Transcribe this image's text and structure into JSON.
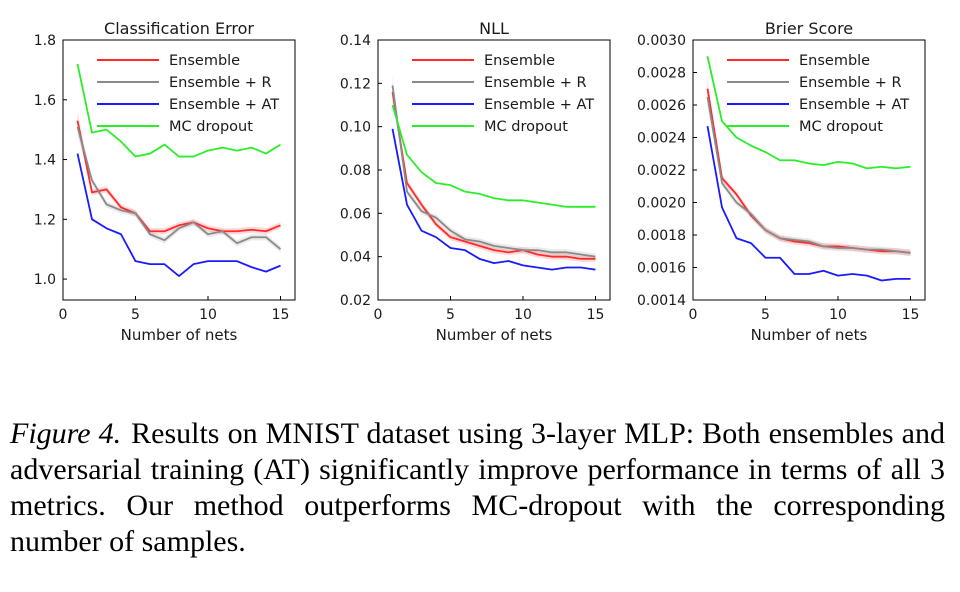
{
  "chart_data": [
    {
      "type": "line",
      "title": "Classification Error",
      "xlabel": "Number of nets",
      "ylabel": "",
      "xlim": [
        0,
        16
      ],
      "ylim": [
        0.93,
        1.8
      ],
      "xticks": [
        0,
        5,
        10,
        15
      ],
      "yticks": [
        1.0,
        1.2,
        1.4,
        1.6,
        1.8
      ],
      "ytick_labels": [
        "1.0",
        "1.2",
        "1.4",
        "1.6",
        "1.8"
      ],
      "legend": "top-right",
      "x": [
        1,
        2,
        3,
        4,
        5,
        6,
        7,
        8,
        9,
        10,
        11,
        12,
        13,
        14,
        15
      ],
      "series": [
        {
          "name": "Ensemble",
          "color": "#ff2a2a",
          "band": true,
          "values": [
            1.53,
            1.29,
            1.3,
            1.24,
            1.22,
            1.16,
            1.16,
            1.18,
            1.19,
            1.17,
            1.16,
            1.16,
            1.165,
            1.16,
            1.18
          ]
        },
        {
          "name": "Ensemble + R",
          "color": "#8a8a8a",
          "band": true,
          "values": [
            1.51,
            1.33,
            1.25,
            1.23,
            1.22,
            1.15,
            1.13,
            1.17,
            1.19,
            1.15,
            1.16,
            1.12,
            1.14,
            1.14,
            1.1
          ]
        },
        {
          "name": "Ensemble + AT",
          "color": "#1a1aff",
          "band": false,
          "values": [
            1.42,
            1.2,
            1.17,
            1.15,
            1.06,
            1.05,
            1.05,
            1.01,
            1.05,
            1.06,
            1.06,
            1.06,
            1.04,
            1.025,
            1.045
          ]
        },
        {
          "name": "MC dropout",
          "color": "#2aee2a",
          "band": false,
          "values": [
            1.72,
            1.49,
            1.5,
            1.46,
            1.41,
            1.42,
            1.45,
            1.41,
            1.41,
            1.43,
            1.44,
            1.43,
            1.44,
            1.42,
            1.45
          ]
        }
      ]
    },
    {
      "type": "line",
      "title": "NLL",
      "xlabel": "Number of nets",
      "ylabel": "",
      "xlim": [
        0,
        16
      ],
      "ylim": [
        0.02,
        0.14
      ],
      "xticks": [
        0,
        5,
        10,
        15
      ],
      "yticks": [
        0.02,
        0.04,
        0.06,
        0.08,
        0.1,
        0.12,
        0.14
      ],
      "ytick_labels": [
        "0.02",
        "0.04",
        "0.06",
        "0.08",
        "0.10",
        "0.12",
        "0.14"
      ],
      "legend": "top-right",
      "x": [
        1,
        2,
        3,
        4,
        5,
        6,
        7,
        8,
        9,
        10,
        11,
        12,
        13,
        14,
        15
      ],
      "series": [
        {
          "name": "Ensemble",
          "color": "#ff2a2a",
          "band": true,
          "values": [
            0.116,
            0.074,
            0.064,
            0.055,
            0.049,
            0.047,
            0.045,
            0.043,
            0.042,
            0.043,
            0.041,
            0.04,
            0.04,
            0.039,
            0.039
          ]
        },
        {
          "name": "Ensemble + R",
          "color": "#8a8a8a",
          "band": true,
          "values": [
            0.119,
            0.07,
            0.061,
            0.058,
            0.052,
            0.048,
            0.047,
            0.045,
            0.044,
            0.043,
            0.043,
            0.042,
            0.042,
            0.041,
            0.04
          ]
        },
        {
          "name": "Ensemble + AT",
          "color": "#1a1aff",
          "band": false,
          "values": [
            0.099,
            0.064,
            0.052,
            0.049,
            0.044,
            0.043,
            0.039,
            0.037,
            0.038,
            0.036,
            0.035,
            0.034,
            0.035,
            0.035,
            0.034
          ]
        },
        {
          "name": "MC dropout",
          "color": "#2aee2a",
          "band": false,
          "values": [
            0.11,
            0.087,
            0.079,
            0.074,
            0.073,
            0.07,
            0.069,
            0.067,
            0.066,
            0.066,
            0.065,
            0.064,
            0.063,
            0.063,
            0.063
          ]
        }
      ]
    },
    {
      "type": "line",
      "title": "Brier Score",
      "xlabel": "Number of nets",
      "ylabel": "",
      "xlim": [
        0,
        16
      ],
      "ylim": [
        0.0014,
        0.003
      ],
      "xticks": [
        0,
        5,
        10,
        15
      ],
      "yticks": [
        0.0014,
        0.0016,
        0.0018,
        0.002,
        0.0022,
        0.0024,
        0.0026,
        0.0028,
        0.003
      ],
      "ytick_labels": [
        "0.0014",
        "0.0016",
        "0.0018",
        "0.0020",
        "0.0022",
        "0.0024",
        "0.0026",
        "0.0028",
        "0.0030"
      ],
      "legend": "top-right",
      "x": [
        1,
        2,
        3,
        4,
        5,
        6,
        7,
        8,
        9,
        10,
        11,
        12,
        13,
        14,
        15
      ],
      "series": [
        {
          "name": "Ensemble",
          "color": "#ff2a2a",
          "band": true,
          "values": [
            0.0027,
            0.00215,
            0.00205,
            0.00192,
            0.00183,
            0.00178,
            0.00176,
            0.00175,
            0.00173,
            0.00173,
            0.00172,
            0.00171,
            0.0017,
            0.0017,
            0.00169
          ]
        },
        {
          "name": "Ensemble + R",
          "color": "#8a8a8a",
          "band": true,
          "values": [
            0.00265,
            0.00212,
            0.002,
            0.00193,
            0.00183,
            0.00178,
            0.00177,
            0.00176,
            0.00173,
            0.00172,
            0.00172,
            0.00171,
            0.00171,
            0.0017,
            0.00169
          ]
        },
        {
          "name": "Ensemble + AT",
          "color": "#1a1aff",
          "band": false,
          "values": [
            0.00247,
            0.00197,
            0.00178,
            0.00175,
            0.00166,
            0.00166,
            0.00156,
            0.00156,
            0.00158,
            0.00155,
            0.00156,
            0.00155,
            0.00152,
            0.00153,
            0.00153
          ]
        },
        {
          "name": "MC dropout",
          "color": "#2aee2a",
          "band": false,
          "values": [
            0.0029,
            0.0025,
            0.0024,
            0.00235,
            0.00231,
            0.00226,
            0.00226,
            0.00224,
            0.00223,
            0.00225,
            0.00224,
            0.00221,
            0.00222,
            0.00221,
            0.00222
          ]
        }
      ]
    }
  ],
  "caption": {
    "label": "Figure 4.",
    "text": "Results on MNIST dataset using 3-layer MLP: Both ensembles and adversarial training (AT) significantly improve performance in terms of all 3 metrics.  Our method outperforms MC-dropout with the corresponding number of samples."
  }
}
